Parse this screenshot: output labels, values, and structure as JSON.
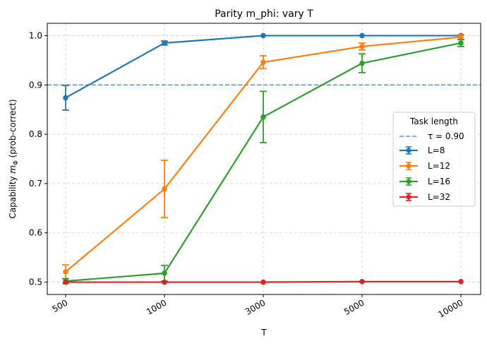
{
  "chart_data": {
    "type": "line",
    "title": "Parity m_phi: vary T",
    "xlabel": "T",
    "ylabel_prefix": "Capability ",
    "ylabel_symbol": "m",
    "ylabel_sub": "Φ",
    "ylabel_suffix": " (prob-correct)",
    "x_categories": [
      "500",
      "1000",
      "3000",
      "5000",
      "10000"
    ],
    "ylim": [
      0.475,
      1.025
    ],
    "yticks": [
      0.5,
      0.6,
      0.7,
      0.8,
      0.9,
      1.0
    ],
    "ytick_labels": [
      "0.5",
      "0.6",
      "0.7",
      "0.8",
      "0.9",
      "1.0"
    ],
    "grid": true,
    "legend_title": "Task length",
    "legend_position": "center-right",
    "threshold": {
      "label": "τ = 0.90",
      "value": 0.9,
      "color": "#1f77b4"
    },
    "series": [
      {
        "name": "L=8",
        "color": "#1f77b4",
        "values": [
          0.874,
          0.985,
          1.0,
          1.0,
          1.0
        ],
        "errors": [
          0.025,
          0.004,
          0.0,
          0.0,
          0.0
        ]
      },
      {
        "name": "L=12",
        "color": "#ff7f0e",
        "values": [
          0.521,
          0.689,
          0.946,
          0.978,
          0.997
        ],
        "errors": [
          0.014,
          0.058,
          0.013,
          0.007,
          0.005
        ]
      },
      {
        "name": "L=16",
        "color": "#2ca02c",
        "values": [
          0.502,
          0.518,
          0.835,
          0.944,
          0.985
        ],
        "errors": [
          0.005,
          0.016,
          0.052,
          0.019,
          0.007
        ]
      },
      {
        "name": "L=32",
        "color": "#d62728",
        "values": [
          0.5,
          0.5,
          0.5,
          0.501,
          0.501
        ],
        "errors": [
          0.0,
          0.0,
          0.0,
          0.0,
          0.0
        ]
      }
    ]
  }
}
